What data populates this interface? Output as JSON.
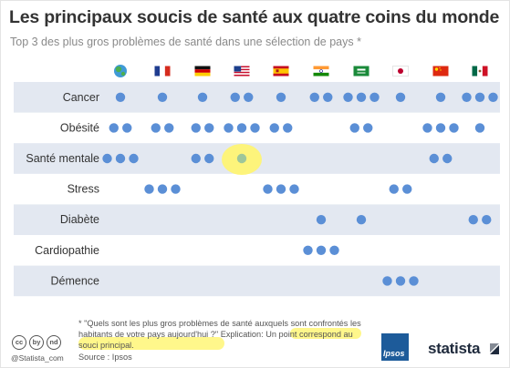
{
  "title": "Les principaux soucis de santé aux quatre coins du monde",
  "subtitle": "Top 3 des plus gros problèmes de santé dans une sélection de pays *",
  "footnote_text": "* \"Quels sont les plus gros problèmes de santé auxquels sont confrontés les habitants de votre pays aujourd'hui ?\" Explication: Un point correspond au souci principal.",
  "source_text": "Source : Ipsos",
  "credit_text": "@Statista_com",
  "license_icons": [
    "cc",
    "by",
    "nd"
  ],
  "ipsos_logo_text": "Ipsos",
  "brand_text": "statista",
  "colors": {
    "dot": "#5b8fd6",
    "dot_principal": "#9ec69a",
    "band": "#e3e8f1",
    "highlight": "#fff56e"
  },
  "chart_data": {
    "type": "table",
    "columns": [
      {
        "icon": "globe-icon"
      },
      {
        "icon": "france-flag-icon"
      },
      {
        "icon": "germany-flag-icon"
      },
      {
        "icon": "usa-flag-icon"
      },
      {
        "icon": "spain-flag-icon"
      },
      {
        "icon": "india-flag-icon"
      },
      {
        "icon": "saudi-arabia-flag-icon"
      },
      {
        "icon": "japan-flag-icon"
      },
      {
        "icon": "china-flag-icon"
      },
      {
        "icon": "mexico-flag-icon"
      }
    ],
    "rows": [
      {
        "label": "Cancer",
        "dots": [
          1,
          1,
          1,
          2,
          1,
          2,
          3,
          1,
          1,
          3
        ]
      },
      {
        "label": "Obésité",
        "dots": [
          2,
          2,
          2,
          3,
          2,
          0,
          2,
          0,
          3,
          1
        ]
      },
      {
        "label": "Santé mentale",
        "dots": [
          3,
          0,
          2,
          1,
          0,
          0,
          0,
          0,
          2,
          0
        ]
      },
      {
        "label": "Stress",
        "dots": [
          0,
          3,
          0,
          0,
          3,
          0,
          0,
          2,
          0,
          0
        ]
      },
      {
        "label": "Diabète",
        "dots": [
          0,
          0,
          0,
          0,
          0,
          1,
          1,
          0,
          0,
          2
        ]
      },
      {
        "label": "Cardiopathie",
        "dots": [
          0,
          0,
          0,
          0,
          0,
          3,
          0,
          0,
          0,
          0
        ]
      },
      {
        "label": "Démence",
        "dots": [
          0,
          0,
          0,
          0,
          0,
          0,
          0,
          3,
          0,
          0
        ]
      }
    ],
    "principal": {
      "row": 2,
      "column": 3
    },
    "legend_note": "Un point correspond au souci principal."
  }
}
